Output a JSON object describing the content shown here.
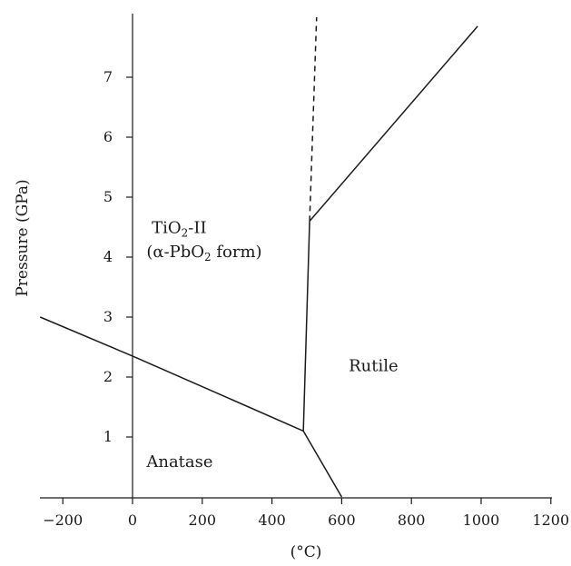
{
  "chart_data": {
    "type": "line",
    "title": "",
    "xlabel": "(°C)",
    "ylabel": "Pressure (GPa)",
    "xlim": [
      -265,
      1250
    ],
    "ylim": [
      0,
      8
    ],
    "x_ticks": [
      -200,
      0,
      200,
      400,
      600,
      800,
      1000,
      1200
    ],
    "x_tick_labels": [
      "−200",
      "0",
      "200",
      "400",
      "600",
      "800",
      "1000",
      "1200"
    ],
    "y_ticks": [
      1,
      2,
      3,
      4,
      5,
      6,
      7
    ],
    "y_tick_labels": [
      "1",
      "2",
      "3",
      "4",
      "5",
      "6",
      "7"
    ],
    "grid": false,
    "series": [
      {
        "style": "solid",
        "x": [
          -265,
          0,
          490
        ],
        "y": [
          3.0,
          2.35,
          1.1
        ]
      },
      {
        "style": "solid",
        "x": [
          490,
          600
        ],
        "y": [
          1.1,
          0.0
        ]
      },
      {
        "style": "solid",
        "x": [
          490,
          508
        ],
        "y": [
          1.1,
          4.6
        ]
      },
      {
        "style": "solid",
        "x": [
          508,
          990
        ],
        "y": [
          4.6,
          7.85
        ]
      },
      {
        "style": "dashed",
        "x": [
          508,
          528
        ],
        "y": [
          4.6,
          8.0
        ]
      }
    ],
    "annotations": [
      {
        "text": "TiO",
        "sub": "2",
        "suffix": "-II",
        "x": 55,
        "y": 4.4
      },
      {
        "text": "(α-PbO",
        "sub": "2",
        "suffix": " form)",
        "x": 40,
        "y": 4.0
      },
      {
        "text": "Rutile",
        "x": 620,
        "y": 2.1
      },
      {
        "text": "Anatase",
        "x": 40,
        "y": 0.5
      }
    ]
  }
}
